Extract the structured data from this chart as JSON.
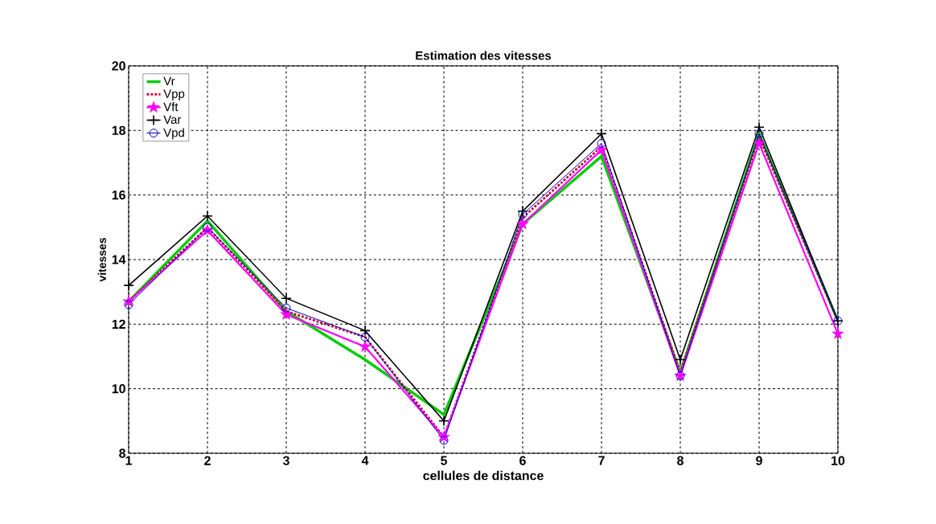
{
  "chart_data": {
    "type": "line",
    "title": "Estimation des vitesses",
    "xlabel": "cellules de distance",
    "ylabel": "vitesses",
    "x": [
      1,
      2,
      3,
      4,
      5,
      6,
      7,
      8,
      9,
      10
    ],
    "series": [
      {
        "name": "Vr",
        "color": "#00cc00",
        "marker": "none",
        "line_style": "solid",
        "values": [
          12.7,
          15.2,
          12.4,
          10.9,
          9.2,
          15.1,
          17.2,
          10.5,
          17.9,
          12.1
        ]
      },
      {
        "name": "Vpp",
        "color": "#cc0033",
        "marker": "none",
        "line_style": "dashed",
        "values": [
          12.7,
          15.0,
          12.4,
          11.6,
          8.5,
          15.3,
          17.5,
          10.5,
          17.8,
          12.1
        ]
      },
      {
        "name": "Vft",
        "color": "#ff00ff",
        "marker": "star",
        "line_style": "solid",
        "values": [
          12.7,
          14.9,
          12.3,
          11.3,
          8.5,
          15.1,
          17.4,
          10.4,
          17.6,
          11.7
        ]
      },
      {
        "name": "Var",
        "color": "#000000",
        "marker": "cross",
        "line_style": "solid",
        "values": [
          13.2,
          15.35,
          12.8,
          11.8,
          9.0,
          15.5,
          17.9,
          10.9,
          18.1,
          12.1
        ]
      },
      {
        "name": "Vpd",
        "color": "#0000cc",
        "marker": "circle",
        "line_style": "solid",
        "values": [
          12.6,
          15.0,
          12.5,
          11.6,
          8.4,
          15.4,
          17.6,
          10.4,
          17.9,
          12.1
        ]
      }
    ],
    "xlim": [
      1,
      10
    ],
    "xticks": [
      1,
      2,
      3,
      4,
      5,
      6,
      7,
      8,
      9,
      10
    ],
    "ylim": [
      8,
      20
    ],
    "yticks": [
      8,
      10,
      12,
      14,
      16,
      18,
      20
    ],
    "grid": true,
    "legend": "top left"
  }
}
